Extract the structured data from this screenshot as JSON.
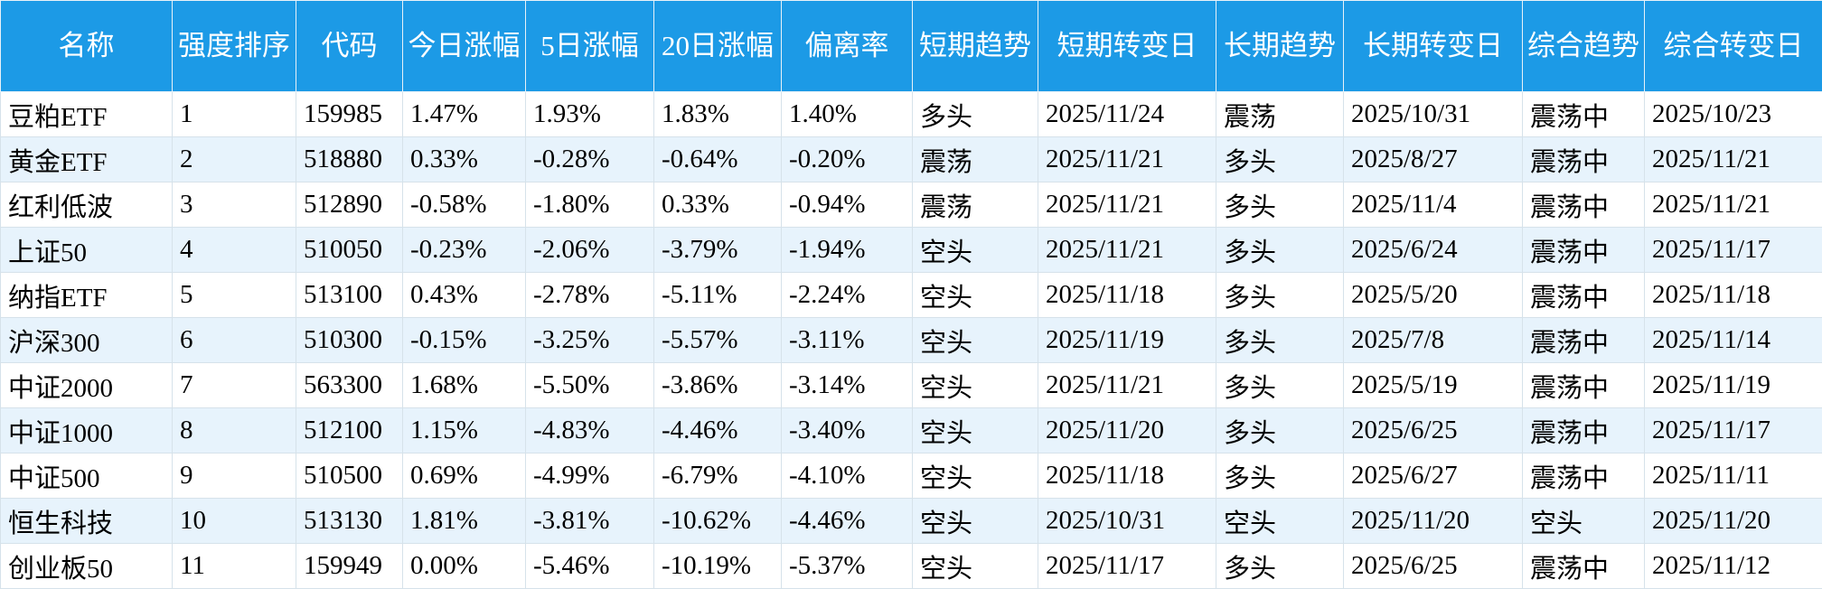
{
  "table": {
    "header": [
      "名称",
      "强度排序",
      "代码",
      "今日涨幅",
      "5日涨幅",
      "20日涨幅",
      "偏离率",
      "短期趋势",
      "短期转变日",
      "长期趋势",
      "长期转变日",
      "综合趋势",
      "综合转变日"
    ],
    "rows": [
      [
        "豆粕ETF",
        "1",
        "159985",
        "1.47%",
        "1.93%",
        "1.83%",
        "1.40%",
        "多头",
        "2025/11/24",
        "震荡",
        "2025/10/31",
        "震荡中",
        "2025/10/23"
      ],
      [
        "黄金ETF",
        "2",
        "518880",
        "0.33%",
        "-0.28%",
        "-0.64%",
        "-0.20%",
        "震荡",
        "2025/11/21",
        "多头",
        "2025/8/27",
        "震荡中",
        "2025/11/21"
      ],
      [
        "红利低波",
        "3",
        "512890",
        "-0.58%",
        "-1.80%",
        "0.33%",
        "-0.94%",
        "震荡",
        "2025/11/21",
        "多头",
        "2025/11/4",
        "震荡中",
        "2025/11/21"
      ],
      [
        "上证50",
        "4",
        "510050",
        "-0.23%",
        "-2.06%",
        "-3.79%",
        "-1.94%",
        "空头",
        "2025/11/21",
        "多头",
        "2025/6/24",
        "震荡中",
        "2025/11/17"
      ],
      [
        "纳指ETF",
        "5",
        "513100",
        "0.43%",
        "-2.78%",
        "-5.11%",
        "-2.24%",
        "空头",
        "2025/11/18",
        "多头",
        "2025/5/20",
        "震荡中",
        "2025/11/18"
      ],
      [
        "沪深300",
        "6",
        "510300",
        "-0.15%",
        "-3.25%",
        "-5.57%",
        "-3.11%",
        "空头",
        "2025/11/19",
        "多头",
        "2025/7/8",
        "震荡中",
        "2025/11/14"
      ],
      [
        "中证2000",
        "7",
        "563300",
        "1.68%",
        "-5.50%",
        "-3.86%",
        "-3.14%",
        "空头",
        "2025/11/21",
        "多头",
        "2025/5/19",
        "震荡中",
        "2025/11/19"
      ],
      [
        "中证1000",
        "8",
        "512100",
        "1.15%",
        "-4.83%",
        "-4.46%",
        "-3.40%",
        "空头",
        "2025/11/20",
        "多头",
        "2025/6/25",
        "震荡中",
        "2025/11/17"
      ],
      [
        "中证500",
        "9",
        "510500",
        "0.69%",
        "-4.99%",
        "-6.79%",
        "-4.10%",
        "空头",
        "2025/11/18",
        "多头",
        "2025/6/27",
        "震荡中",
        "2025/11/11"
      ],
      [
        "恒生科技",
        "10",
        "513130",
        "1.81%",
        "-3.81%",
        "-10.62%",
        "-4.46%",
        "空头",
        "2025/10/31",
        "空头",
        "2025/11/20",
        "空头",
        "2025/11/20"
      ],
      [
        "创业板50",
        "11",
        "159949",
        "0.00%",
        "-5.46%",
        "-10.19%",
        "-5.37%",
        "空头",
        "2025/11/17",
        "多头",
        "2025/6/25",
        "震荡中",
        "2025/11/12"
      ]
    ]
  }
}
